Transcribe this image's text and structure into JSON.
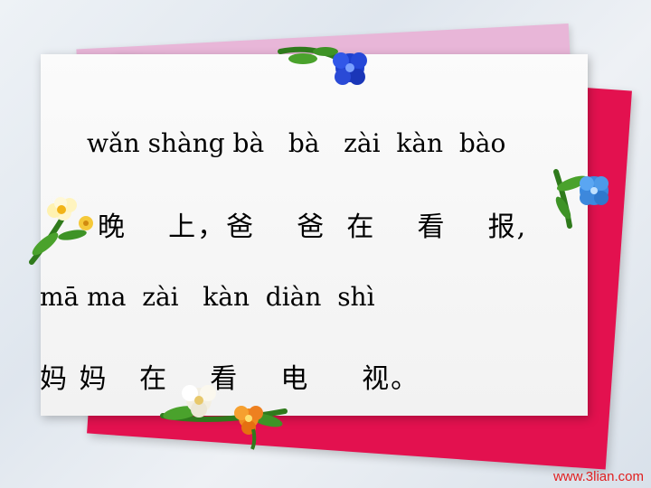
{
  "lines": {
    "pinyin_1": "wǎn shàng bà   bà   zài  kàn  bào",
    "hanzi_1": "晚    上，爸    爸  在    看    报,",
    "pinyin_2": "mā ma  zài   kàn  diàn  shì",
    "hanzi_2": "妈 妈   在    看    电     视。"
  },
  "watermark": "www.3lian.com",
  "decorations": [
    "blue-flower-icon",
    "yellow-flower-icon",
    "white-orange-flower-icon",
    "blue-flower-icon"
  ],
  "colors": {
    "red_card": "#e3114f",
    "pink_card": "#e8b6d8",
    "white_card": "#f6f6f6",
    "watermark": "#e02020"
  }
}
